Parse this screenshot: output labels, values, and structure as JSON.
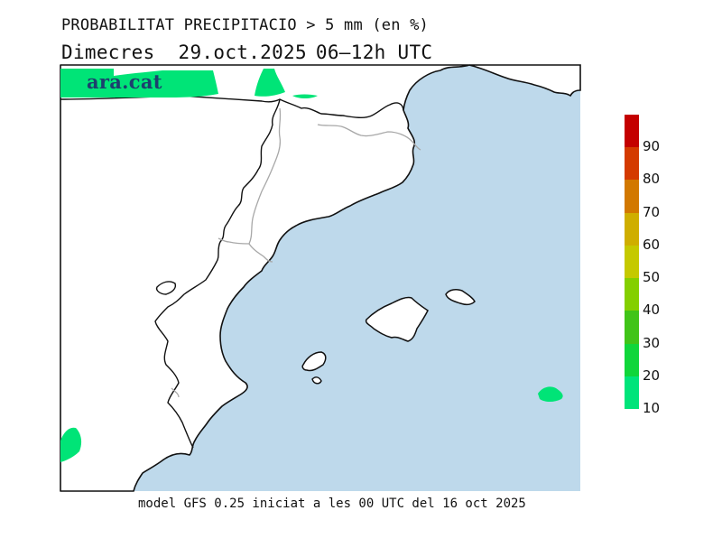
{
  "map": {
    "title": "PROBABILITAT PRECIPITACIO > 5 mm (en %)",
    "day": "Dimecres",
    "date": "29.oct.2025",
    "time": "06–12h UTC",
    "footer": "model GFS 0.25 iniciat a les 00 UTC del 16 oct 2025",
    "brand": "ara.cat",
    "region": "Catalunya, Comunitat Valenciana i Illes Balears",
    "colors": {
      "sea": "#bed9eb",
      "land": "#ffffff",
      "coastline": "#111111",
      "borders": "#a8a8a8",
      "precip_low": "#00e477"
    }
  },
  "legend": {
    "unit": "%",
    "labels": [
      "90",
      "80",
      "70",
      "60",
      "50",
      "40",
      "30",
      "20",
      "10"
    ],
    "colors": [
      "#c40000",
      "#d43a00",
      "#d27800",
      "#cfae00",
      "#c5c900",
      "#84cf00",
      "#40c418",
      "#10d63a",
      "#00e47a"
    ]
  },
  "precipitation_areas": [
    {
      "location": "Pirineu / sud de França",
      "probability_range": "10-20"
    },
    {
      "location": "Mar, est de Menorca",
      "probability_range": "10-20"
    },
    {
      "location": "Interior, sud-oest",
      "probability_range": "10-20"
    }
  ]
}
